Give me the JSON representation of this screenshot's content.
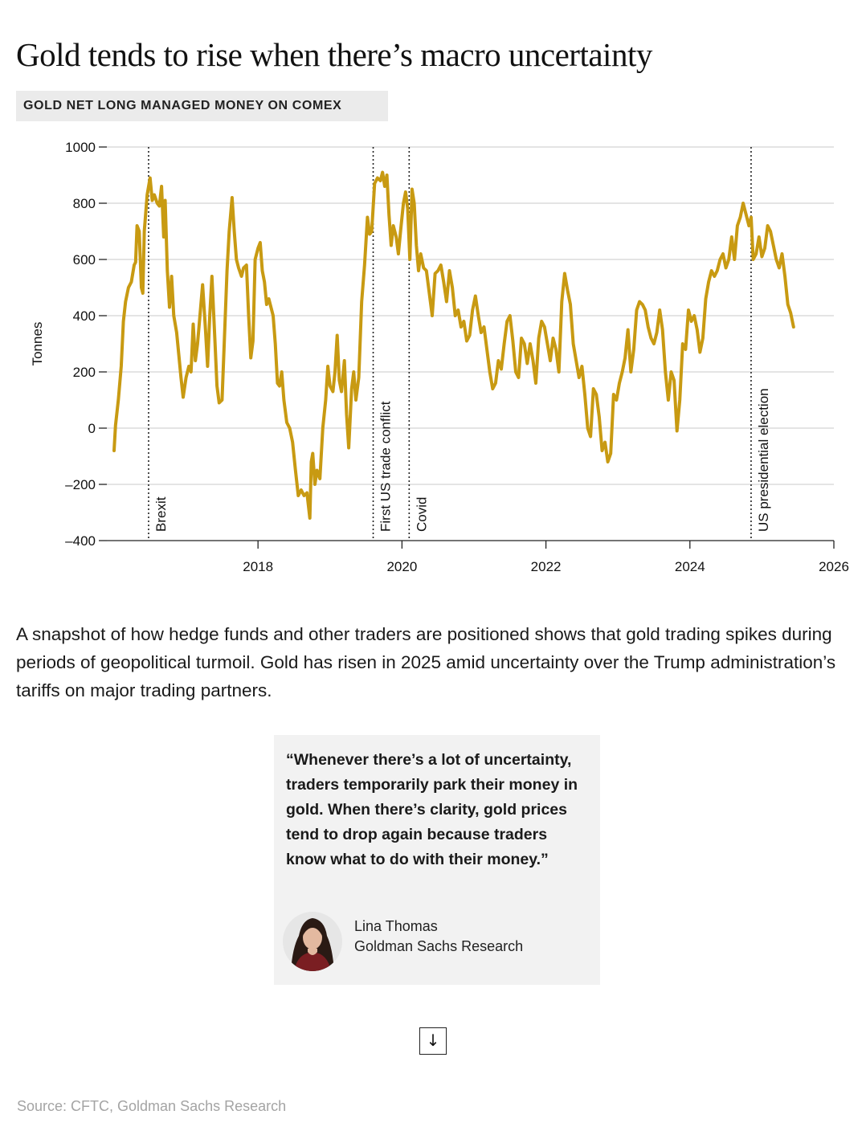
{
  "title": "Gold tends to rise when there’s macro uncertainty",
  "subtitle": "GOLD NET LONG MANAGED MONEY ON COMEX",
  "body_text": "A snapshot of how hedge funds and other traders are positioned shows that gold trading spikes during periods of geopolitical turmoil. Gold has risen in 2025 amid uncertainty over the Trump administration’s tariffs on major trading partners.",
  "quote": {
    "text": "“Whenever there’s a lot of uncertainty, traders temporarily park their money in gold. When there’s clarity, gold prices tend to drop again because traders know what to do with their money.”",
    "author_name": "Lina Thomas",
    "author_org": "Goldman Sachs Research"
  },
  "scroll_button": {
    "icon": "arrow-down-icon",
    "glyph": "↓"
  },
  "source": "Source: CFTC, Goldman Sachs Research",
  "colors": {
    "line": "#c89a12",
    "grid": "#d4d4d4",
    "event_line": "#222222"
  },
  "chart_data": {
    "type": "line",
    "title": "GOLD NET LONG MANAGED MONEY ON COMEX",
    "ylabel": "Tonnes",
    "xlabel": "",
    "ylim": [
      -400,
      1000
    ],
    "xlim": [
      2015.9,
      2026
    ],
    "yticks": [
      -400,
      -200,
      0,
      200,
      400,
      600,
      800,
      1000
    ],
    "ytick_labels": [
      "–400",
      "–200",
      "0",
      "200",
      "400",
      "600",
      "800",
      "1000"
    ],
    "xticks": [
      2018,
      2020,
      2022,
      2024,
      2026
    ],
    "xtick_labels": [
      "2018",
      "2020",
      "2022",
      "2024",
      "2026"
    ],
    "grid": true,
    "events": [
      {
        "label": "Brexit",
        "x": 2016.48
      },
      {
        "label": "First US trade conflict",
        "x": 2019.6
      },
      {
        "label": "Covid",
        "x": 2020.1
      },
      {
        "label": "US presidential election",
        "x": 2024.85
      }
    ],
    "series": [
      {
        "values": [
          [
            2016.0,
            -80
          ],
          [
            2016.02,
            10
          ],
          [
            2016.06,
            100
          ],
          [
            2016.1,
            220
          ],
          [
            2016.13,
            380
          ],
          [
            2016.16,
            450
          ],
          [
            2016.2,
            500
          ],
          [
            2016.24,
            520
          ],
          [
            2016.28,
            580
          ],
          [
            2016.3,
            590
          ],
          [
            2016.32,
            720
          ],
          [
            2016.35,
            700
          ],
          [
            2016.38,
            500
          ],
          [
            2016.4,
            480
          ],
          [
            2016.42,
            700
          ],
          [
            2016.46,
            830
          ],
          [
            2016.5,
            890
          ],
          [
            2016.53,
            810
          ],
          [
            2016.56,
            830
          ],
          [
            2016.6,
            800
          ],
          [
            2016.63,
            790
          ],
          [
            2016.66,
            860
          ],
          [
            2016.69,
            680
          ],
          [
            2016.71,
            810
          ],
          [
            2016.74,
            560
          ],
          [
            2016.77,
            430
          ],
          [
            2016.8,
            540
          ],
          [
            2016.83,
            400
          ],
          [
            2016.87,
            340
          ],
          [
            2016.9,
            260
          ],
          [
            2016.93,
            180
          ],
          [
            2016.96,
            110
          ],
          [
            2017.0,
            180
          ],
          [
            2017.04,
            220
          ],
          [
            2017.07,
            200
          ],
          [
            2017.1,
            370
          ],
          [
            2017.13,
            240
          ],
          [
            2017.16,
            300
          ],
          [
            2017.2,
            420
          ],
          [
            2017.23,
            510
          ],
          [
            2017.27,
            350
          ],
          [
            2017.3,
            220
          ],
          [
            2017.33,
            400
          ],
          [
            2017.36,
            540
          ],
          [
            2017.4,
            320
          ],
          [
            2017.43,
            150
          ],
          [
            2017.46,
            90
          ],
          [
            2017.5,
            100
          ],
          [
            2017.53,
            300
          ],
          [
            2017.57,
            560
          ],
          [
            2017.6,
            700
          ],
          [
            2017.64,
            820
          ],
          [
            2017.67,
            700
          ],
          [
            2017.7,
            600
          ],
          [
            2017.73,
            570
          ],
          [
            2017.77,
            540
          ],
          [
            2017.8,
            570
          ],
          [
            2017.84,
            580
          ],
          [
            2017.87,
            400
          ],
          [
            2017.9,
            250
          ],
          [
            2017.93,
            310
          ],
          [
            2017.96,
            600
          ],
          [
            2018.0,
            640
          ],
          [
            2018.03,
            660
          ],
          [
            2018.06,
            560
          ],
          [
            2018.09,
            520
          ],
          [
            2018.12,
            440
          ],
          [
            2018.15,
            460
          ],
          [
            2018.18,
            430
          ],
          [
            2018.21,
            400
          ],
          [
            2018.24,
            300
          ],
          [
            2018.27,
            160
          ],
          [
            2018.3,
            150
          ],
          [
            2018.33,
            200
          ],
          [
            2018.36,
            100
          ],
          [
            2018.4,
            20
          ],
          [
            2018.44,
            0
          ],
          [
            2018.48,
            -50
          ],
          [
            2018.52,
            -150
          ],
          [
            2018.56,
            -240
          ],
          [
            2018.6,
            -220
          ],
          [
            2018.64,
            -240
          ],
          [
            2018.68,
            -230
          ],
          [
            2018.72,
            -320
          ],
          [
            2018.74,
            -120
          ],
          [
            2018.76,
            -90
          ],
          [
            2018.79,
            -200
          ],
          [
            2018.82,
            -150
          ],
          [
            2018.86,
            -180
          ],
          [
            2018.9,
            0
          ],
          [
            2018.94,
            100
          ],
          [
            2018.97,
            220
          ],
          [
            2019.0,
            150
          ],
          [
            2019.04,
            130
          ],
          [
            2019.07,
            200
          ],
          [
            2019.1,
            330
          ],
          [
            2019.13,
            170
          ],
          [
            2019.16,
            130
          ],
          [
            2019.2,
            240
          ],
          [
            2019.23,
            50
          ],
          [
            2019.26,
            -70
          ],
          [
            2019.3,
            140
          ],
          [
            2019.33,
            200
          ],
          [
            2019.36,
            100
          ],
          [
            2019.4,
            180
          ],
          [
            2019.44,
            450
          ],
          [
            2019.48,
            580
          ],
          [
            2019.52,
            750
          ],
          [
            2019.55,
            690
          ],
          [
            2019.58,
            700
          ],
          [
            2019.62,
            870
          ],
          [
            2019.66,
            890
          ],
          [
            2019.7,
            880
          ],
          [
            2019.73,
            910
          ],
          [
            2019.76,
            860
          ],
          [
            2019.79,
            900
          ],
          [
            2019.82,
            760
          ],
          [
            2019.85,
            650
          ],
          [
            2019.88,
            720
          ],
          [
            2019.92,
            680
          ],
          [
            2019.95,
            620
          ],
          [
            2019.98,
            700
          ],
          [
            2020.02,
            800
          ],
          [
            2020.05,
            840
          ],
          [
            2020.08,
            780
          ],
          [
            2020.11,
            600
          ],
          [
            2020.14,
            850
          ],
          [
            2020.17,
            800
          ],
          [
            2020.2,
            650
          ],
          [
            2020.23,
            560
          ],
          [
            2020.26,
            620
          ],
          [
            2020.3,
            570
          ],
          [
            2020.34,
            560
          ],
          [
            2020.38,
            480
          ],
          [
            2020.42,
            400
          ],
          [
            2020.46,
            550
          ],
          [
            2020.5,
            560
          ],
          [
            2020.54,
            580
          ],
          [
            2020.58,
            520
          ],
          [
            2020.62,
            450
          ],
          [
            2020.66,
            560
          ],
          [
            2020.7,
            500
          ],
          [
            2020.74,
            400
          ],
          [
            2020.78,
            420
          ],
          [
            2020.82,
            360
          ],
          [
            2020.86,
            380
          ],
          [
            2020.9,
            310
          ],
          [
            2020.94,
            330
          ],
          [
            2020.98,
            420
          ],
          [
            2021.02,
            470
          ],
          [
            2021.06,
            400
          ],
          [
            2021.1,
            340
          ],
          [
            2021.14,
            360
          ],
          [
            2021.18,
            280
          ],
          [
            2021.22,
            200
          ],
          [
            2021.26,
            140
          ],
          [
            2021.3,
            160
          ],
          [
            2021.34,
            240
          ],
          [
            2021.38,
            210
          ],
          [
            2021.42,
            300
          ],
          [
            2021.46,
            380
          ],
          [
            2021.5,
            400
          ],
          [
            2021.54,
            310
          ],
          [
            2021.58,
            200
          ],
          [
            2021.62,
            180
          ],
          [
            2021.66,
            320
          ],
          [
            2021.7,
            300
          ],
          [
            2021.74,
            230
          ],
          [
            2021.78,
            300
          ],
          [
            2021.82,
            240
          ],
          [
            2021.86,
            160
          ],
          [
            2021.9,
            320
          ],
          [
            2021.94,
            380
          ],
          [
            2021.98,
            360
          ],
          [
            2022.02,
            300
          ],
          [
            2022.06,
            240
          ],
          [
            2022.1,
            320
          ],
          [
            2022.14,
            280
          ],
          [
            2022.18,
            200
          ],
          [
            2022.22,
            450
          ],
          [
            2022.26,
            550
          ],
          [
            2022.3,
            490
          ],
          [
            2022.34,
            440
          ],
          [
            2022.38,
            300
          ],
          [
            2022.42,
            240
          ],
          [
            2022.46,
            180
          ],
          [
            2022.5,
            220
          ],
          [
            2022.54,
            120
          ],
          [
            2022.58,
            0
          ],
          [
            2022.62,
            -30
          ],
          [
            2022.66,
            140
          ],
          [
            2022.7,
            120
          ],
          [
            2022.74,
            40
          ],
          [
            2022.78,
            -80
          ],
          [
            2022.82,
            -50
          ],
          [
            2022.86,
            -120
          ],
          [
            2022.9,
            -90
          ],
          [
            2022.94,
            120
          ],
          [
            2022.98,
            100
          ],
          [
            2023.02,
            160
          ],
          [
            2023.06,
            200
          ],
          [
            2023.1,
            250
          ],
          [
            2023.14,
            350
          ],
          [
            2023.18,
            200
          ],
          [
            2023.22,
            280
          ],
          [
            2023.26,
            420
          ],
          [
            2023.3,
            450
          ],
          [
            2023.34,
            440
          ],
          [
            2023.38,
            420
          ],
          [
            2023.42,
            360
          ],
          [
            2023.46,
            320
          ],
          [
            2023.5,
            300
          ],
          [
            2023.54,
            340
          ],
          [
            2023.58,
            420
          ],
          [
            2023.62,
            350
          ],
          [
            2023.66,
            200
          ],
          [
            2023.7,
            100
          ],
          [
            2023.74,
            200
          ],
          [
            2023.78,
            170
          ],
          [
            2023.82,
            -10
          ],
          [
            2023.86,
            100
          ],
          [
            2023.9,
            300
          ],
          [
            2023.94,
            280
          ],
          [
            2023.98,
            420
          ],
          [
            2024.02,
            380
          ],
          [
            2024.06,
            400
          ],
          [
            2024.1,
            350
          ],
          [
            2024.14,
            270
          ],
          [
            2024.18,
            320
          ],
          [
            2024.22,
            460
          ],
          [
            2024.26,
            520
          ],
          [
            2024.3,
            560
          ],
          [
            2024.34,
            540
          ],
          [
            2024.38,
            560
          ],
          [
            2024.42,
            600
          ],
          [
            2024.46,
            620
          ],
          [
            2024.5,
            570
          ],
          [
            2024.54,
            600
          ],
          [
            2024.58,
            680
          ],
          [
            2024.62,
            600
          ],
          [
            2024.66,
            720
          ],
          [
            2024.7,
            750
          ],
          [
            2024.74,
            800
          ],
          [
            2024.78,
            760
          ],
          [
            2024.82,
            720
          ],
          [
            2024.85,
            750
          ],
          [
            2024.88,
            600
          ],
          [
            2024.92,
            620
          ],
          [
            2024.96,
            680
          ],
          [
            2025.0,
            610
          ],
          [
            2025.04,
            640
          ],
          [
            2025.08,
            720
          ],
          [
            2025.12,
            700
          ],
          [
            2025.16,
            650
          ],
          [
            2025.2,
            600
          ],
          [
            2025.24,
            570
          ],
          [
            2025.28,
            620
          ],
          [
            2025.32,
            540
          ],
          [
            2025.36,
            440
          ],
          [
            2025.4,
            410
          ],
          [
            2025.44,
            360
          ]
        ]
      }
    ]
  }
}
